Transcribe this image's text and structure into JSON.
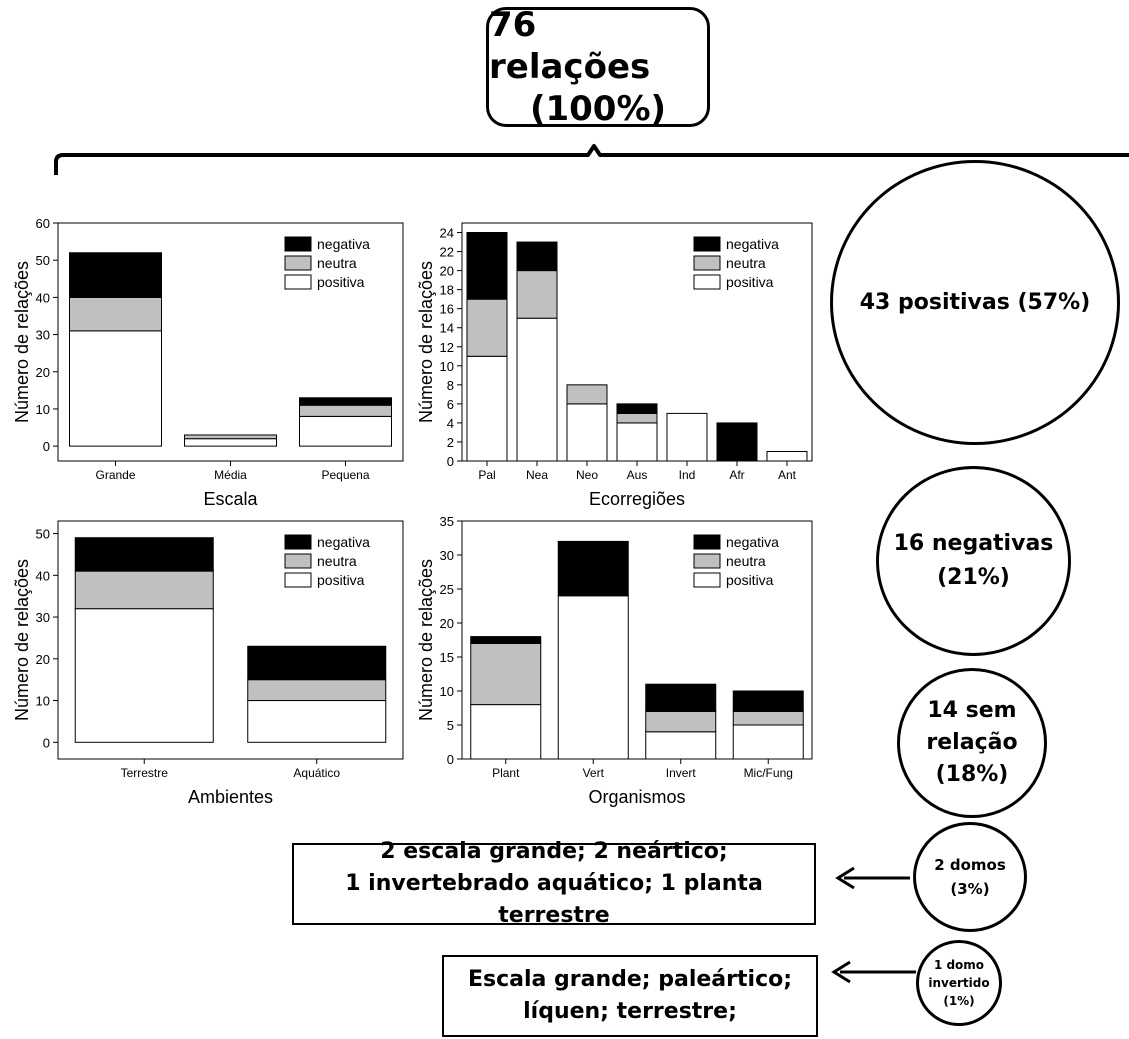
{
  "title": {
    "line1": "76 relações",
    "line2": "(100%)"
  },
  "circles": {
    "positive": {
      "lines": [
        "43 positivas (57%)"
      ]
    },
    "negative": {
      "lines": [
        "16 negativas",
        "(21%)"
      ]
    },
    "none": {
      "lines": [
        "14 sem",
        "relação",
        "(18%)"
      ]
    },
    "domes": {
      "lines": [
        "2 domos",
        "(3%)"
      ]
    },
    "inverted": {
      "lines": [
        "1 domo",
        "invertido",
        "(1%)"
      ]
    }
  },
  "notes": {
    "domes": {
      "line1": "2 escala grande; 2 neártico;",
      "line2": "1 invertebrado aquático; 1 planta terrestre"
    },
    "inverted": {
      "line1": "Escala grande; paleártico;",
      "line2": "líquen; terrestre;"
    }
  },
  "colors": {
    "negativa": "#000000",
    "neutra": "#c0c0c0",
    "positiva": "#ffffff"
  },
  "chart_data": [
    {
      "type": "bar",
      "stacked": true,
      "categories": [
        "Grande",
        "Média",
        "Pequena"
      ],
      "series": [
        {
          "name": "positiva",
          "values": [
            31,
            2,
            8
          ]
        },
        {
          "name": "neutra",
          "values": [
            9,
            1,
            3
          ]
        },
        {
          "name": "negativa",
          "values": [
            12,
            0,
            2
          ]
        }
      ],
      "xlabel": "Escala",
      "ylabel": "Número de relações",
      "ylim": [
        -4,
        60
      ],
      "yticks": [
        0,
        10,
        20,
        30,
        40,
        50,
        60
      ],
      "legend": "top-right"
    },
    {
      "type": "bar",
      "stacked": true,
      "categories": [
        "Pal",
        "Nea",
        "Neo",
        "Aus",
        "Ind",
        "Afr",
        "Ant"
      ],
      "series": [
        {
          "name": "positiva",
          "values": [
            11,
            15,
            6,
            4,
            5,
            0,
            1
          ]
        },
        {
          "name": "neutra",
          "values": [
            6,
            5,
            2,
            1,
            0,
            0,
            0
          ]
        },
        {
          "name": "negativa",
          "values": [
            7,
            3,
            0,
            1,
            0,
            4,
            0
          ]
        }
      ],
      "xlabel": "Ecorregiões",
      "ylabel": "Número de relações",
      "ylim": [
        0,
        25
      ],
      "yticks": [
        0,
        2,
        4,
        6,
        8,
        10,
        12,
        14,
        16,
        18,
        20,
        22,
        24
      ],
      "legend": "top-right"
    },
    {
      "type": "bar",
      "stacked": true,
      "categories": [
        "Terrestre",
        "Aquático"
      ],
      "series": [
        {
          "name": "positiva",
          "values": [
            32,
            10
          ]
        },
        {
          "name": "neutra",
          "values": [
            9,
            5
          ]
        },
        {
          "name": "negativa",
          "values": [
            8,
            8
          ]
        }
      ],
      "xlabel": "Ambientes",
      "ylabel": "Número de relações",
      "ylim": [
        -4,
        53
      ],
      "yticks": [
        0,
        10,
        20,
        30,
        40,
        50
      ],
      "legend": "top-right"
    },
    {
      "type": "bar",
      "stacked": true,
      "categories": [
        "Plant",
        "Vert",
        "Invert",
        "Mic/Fung"
      ],
      "series": [
        {
          "name": "positiva",
          "values": [
            8,
            24,
            4,
            5
          ]
        },
        {
          "name": "neutra",
          "values": [
            9,
            0,
            3,
            2
          ]
        },
        {
          "name": "negativa",
          "values": [
            1,
            8,
            4,
            3
          ]
        }
      ],
      "xlabel": "Organismos",
      "ylabel": "Número de relações",
      "ylim": [
        0,
        35
      ],
      "yticks": [
        0,
        5,
        10,
        15,
        20,
        25,
        30,
        35
      ],
      "legend": "top-right"
    }
  ]
}
